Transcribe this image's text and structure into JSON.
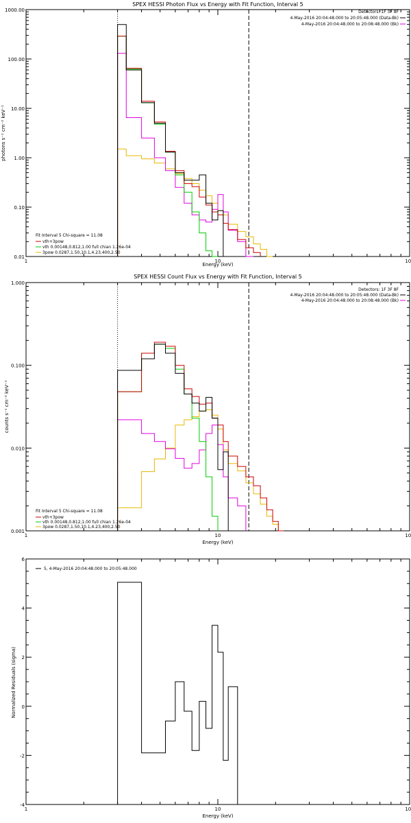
{
  "chart_data": [
    {
      "type": "line",
      "title": "SPEX HESSI Photon Flux vs Energy with Fit Function, Interval 5",
      "xlabel": "Energy (keV)",
      "ylabel": "photons s⁻¹ cm⁻² keV⁻¹",
      "xscale": "log",
      "yscale": "log",
      "xlim": [
        1,
        100
      ],
      "ylim": [
        0.01,
        1000
      ],
      "x_tick_labels": [
        "1",
        "10",
        "100"
      ],
      "y_tick_labels": [
        "0.01",
        "0.10",
        "1.00",
        "10.00",
        "100.00",
        "1000.00"
      ],
      "fit_range_lines": {
        "start_keV": 3.0,
        "end_keV": 14.5
      },
      "legend_topright": {
        "line1": "Detectors: 1F 3F 8F",
        "line2": "4-May-2016 20:04:48.000 to 20:05:48.000 (Data-Bk)",
        "line3": "4-May-2016 20:04:48.000 to 20:08:48.000 (Bk)"
      },
      "legend_bottomleft": {
        "line1": "Fit Interval 5   Chi-square = 11.08",
        "line2": "vth+3pow",
        "line3": "vth 0.00148,0.812,1.00  full chian 1.26e-04",
        "line4": "3pow 0.0287,1.50,10.1,4.23,400,2.50"
      },
      "edges": [
        3.0,
        3.33,
        4.0,
        4.67,
        5.33,
        6.0,
        6.67,
        7.33,
        8.0,
        8.67,
        9.33,
        10.0,
        10.67,
        11.33,
        12.67,
        14.0,
        15.33,
        16.67,
        18.0,
        19.33,
        20.67,
        22.0
      ],
      "series": [
        {
          "name": "Data-Bk",
          "color": "#000000",
          "values": [
            500,
            60,
            13,
            5.0,
            1.3,
            0.5,
            0.35,
            0.35,
            0.45,
            0.12,
            0.055,
            0.085
          ]
        },
        {
          "name": "Bk",
          "color": "#e000e0",
          "values": [
            130,
            6.5,
            2.5,
            1.0,
            0.55,
            0.25,
            0.12,
            0.07,
            0.055,
            0.05,
            0.09,
            0.18,
            0.08,
            0.034,
            0.02,
            0.01
          ]
        },
        {
          "name": "vth+3pow",
          "color": "#cc0000",
          "values": [
            290,
            65,
            14,
            5.3,
            1.35,
            0.55,
            0.3,
            0.26,
            0.16,
            0.11,
            0.08,
            0.07,
            0.047,
            0.035,
            0.022,
            0.015,
            0.012
          ]
        },
        {
          "name": "vth",
          "color": "#00cc00",
          "values": [
            290,
            62,
            13,
            4.8,
            1.3,
            0.45,
            0.2,
            0.08,
            0.03,
            0.013,
            0.008
          ]
        },
        {
          "name": "3pow",
          "color": "#e6b800",
          "values": [
            1.5,
            1.1,
            0.95,
            0.78,
            0.6,
            0.48,
            0.38,
            0.3,
            0.22,
            0.17,
            0.12,
            0.085,
            0.07,
            0.045,
            0.032,
            0.025,
            0.018,
            0.014,
            0.01
          ]
        }
      ]
    },
    {
      "type": "line",
      "title": "SPEX HESSI Count Flux vs Energy with Fit Function, Interval 5",
      "xlabel": "Energy (keV)",
      "ylabel": "counts s⁻¹ cm⁻² keV⁻¹",
      "xscale": "log",
      "yscale": "log",
      "xlim": [
        1,
        100
      ],
      "ylim": [
        0.001,
        1
      ],
      "x_tick_labels": [
        "1",
        "10",
        "100"
      ],
      "y_tick_labels": [
        "0.001",
        "0.010",
        "0.100",
        "1.000"
      ],
      "fit_range_lines": {
        "start_keV": 3.0,
        "end_keV": 14.5
      },
      "legend_topright": {
        "line1": "Detectors: 1F 3F 8F",
        "line2": "4-May-2016 20:04:48.000 to 20:05:48.000 (Data-Bk)",
        "line3": "4-May-2016 20:04:48.000 to 20:08:48.000 (Bk)"
      },
      "legend_bottomleft": {
        "line1": "Fit Interval 5   Chi-square = 11.08",
        "line2": "vth+3pow",
        "line3": "vth 0.00148,0.812,1.00  full chian 1.26e-04",
        "line4": "3pow 0.0287,1.50,10.1,4.23,400,2.50"
      },
      "edges": [
        3.0,
        4.0,
        4.67,
        5.33,
        6.0,
        6.67,
        7.33,
        8.0,
        8.67,
        9.33,
        10.0,
        10.67,
        11.33,
        12.67,
        14.0,
        15.33,
        16.67,
        18.0,
        19.33,
        20.67,
        22.0,
        24.0
      ],
      "series": [
        {
          "name": "Data-Bk",
          "color": "#000000",
          "values": [
            0.087,
            0.12,
            0.18,
            0.14,
            0.08,
            0.045,
            0.035,
            0.028,
            0.041,
            0.023,
            0.0055,
            0.009
          ]
        },
        {
          "name": "Bk",
          "color": "#e000e0",
          "values": [
            0.022,
            0.015,
            0.012,
            0.0098,
            0.0075,
            0.0057,
            0.0065,
            0.0095,
            0.015,
            0.019,
            0.011,
            0.0045,
            0.0025,
            0.002
          ]
        },
        {
          "name": "vth+3pow",
          "color": "#cc0000",
          "values": [
            0.048,
            0.14,
            0.19,
            0.17,
            0.1,
            0.052,
            0.042,
            0.034,
            0.035,
            0.023,
            0.019,
            0.012,
            0.008,
            0.006,
            0.0045,
            0.0035,
            0.0025,
            0.0018,
            0.0013,
            0.001
          ]
        },
        {
          "name": "vth",
          "color": "#00cc00",
          "values": [
            0.048,
            0.14,
            0.18,
            0.16,
            0.09,
            0.045,
            0.023,
            0.012,
            0.0045,
            0.0015
          ]
        },
        {
          "name": "3pow",
          "color": "#e6b800",
          "values": [
            0.0019,
            0.0052,
            0.0074,
            0.01,
            0.019,
            0.022,
            0.024,
            0.028,
            0.029,
            0.025,
            0.017,
            0.0095,
            0.0065,
            0.0053,
            0.0038,
            0.0028,
            0.0021,
            0.0015,
            0.0012,
            0.001
          ]
        }
      ]
    },
    {
      "type": "line",
      "title": "",
      "xlabel": "Energy (keV)",
      "ylabel": "Normalized Residuals (sigma)",
      "xscale": "log",
      "yscale": "linear",
      "xlim": [
        1,
        100
      ],
      "ylim": [
        -4,
        6
      ],
      "x_tick_labels": [
        "1",
        "10",
        "100"
      ],
      "y_tick_labels": [
        "-4",
        "-2",
        "0",
        "2",
        "4",
        "6"
      ],
      "legend_topleft": "5,  4-May-2016 20:04:48.000 to 20:05:48.000",
      "edges": [
        3.0,
        4.0,
        5.33,
        6.0,
        6.67,
        7.33,
        8.0,
        8.67,
        9.33,
        10.0,
        10.67,
        11.33,
        12.67,
        14.0
      ],
      "series": [
        {
          "name": "5,  4-May-2016 20:04:48.000 to 20:05:48.000",
          "color": "#000000",
          "values": [
            5.05,
            -1.9,
            -0.6,
            1.0,
            -0.2,
            -1.8,
            0.2,
            -0.9,
            3.3,
            2.2,
            -2.2,
            0.8
          ]
        }
      ]
    }
  ]
}
